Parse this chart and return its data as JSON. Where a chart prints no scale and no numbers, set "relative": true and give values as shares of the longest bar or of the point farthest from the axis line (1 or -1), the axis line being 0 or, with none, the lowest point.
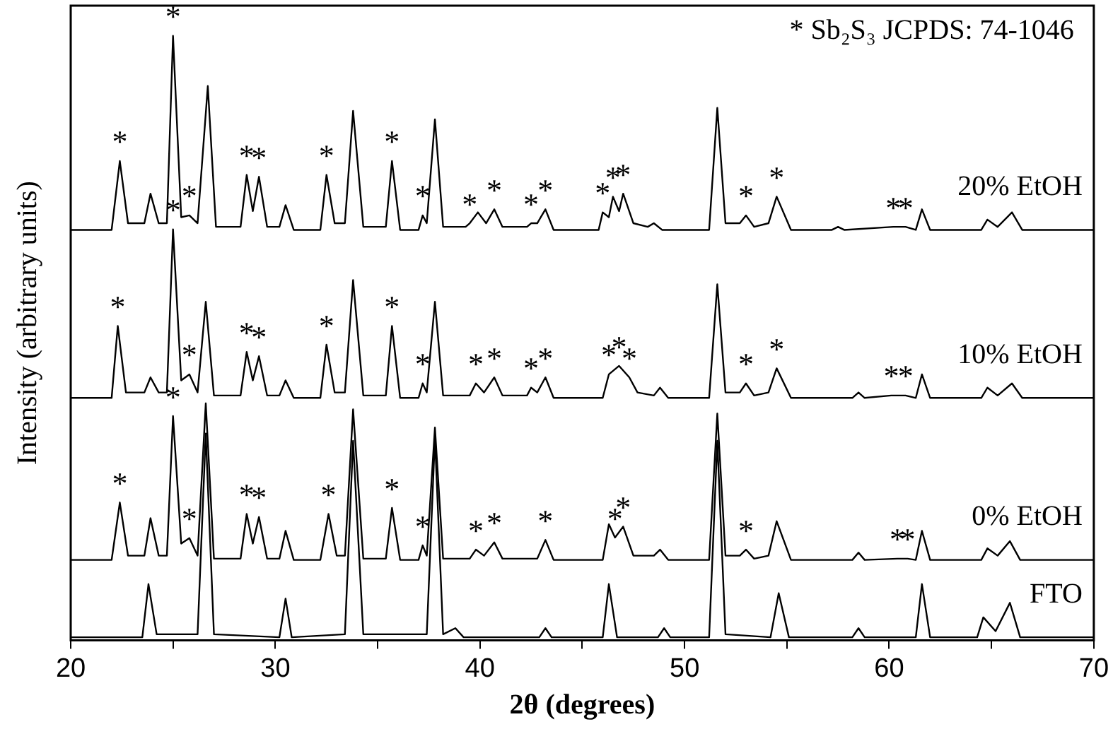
{
  "chart_data": {
    "type": "line",
    "relative": true,
    "xlabel": "2θ (degrees)",
    "ylabel": "Intensity (arbitrary units)",
    "xlim": [
      20,
      70
    ],
    "xticks": [
      20,
      {
        "value": 25,
        "label": null
      },
      30,
      {
        "value": 35,
        "label": null
      },
      40,
      {
        "value": 45,
        "label": null
      },
      50,
      {
        "value": 55,
        "label": null
      },
      60,
      {
        "value": 65,
        "label": null
      },
      70
    ],
    "legend": false,
    "series": [
      {
        "name": "20% EtOH",
        "color": "#000000",
        "x": [
          20,
          22.0,
          22.4,
          22.8,
          23.6,
          23.9,
          24.3,
          24.7,
          25.0,
          25.4,
          25.8,
          26.2,
          26.7,
          27.1,
          28.3,
          28.6,
          28.9,
          29.2,
          29.6,
          30.2,
          30.5,
          30.9,
          32.2,
          32.5,
          32.9,
          33.4,
          33.8,
          34.3,
          35.4,
          35.7,
          36.1,
          37.0,
          37.2,
          37.4,
          37.8,
          38.2,
          39.3,
          39.5,
          39.9,
          40.3,
          40.7,
          41.1,
          42.3,
          42.5,
          42.8,
          43.2,
          43.6,
          45.8,
          46.0,
          46.3,
          46.5,
          46.8,
          47.0,
          47.5,
          48.2,
          48.5,
          48.9,
          51.2,
          51.6,
          52.0,
          52.7,
          53.0,
          53.4,
          54.1,
          54.5,
          55.2,
          57.2,
          57.5,
          57.8,
          60.2,
          60.8,
          61.3,
          61.6,
          62.0,
          64.5,
          64.8,
          65.3,
          66.0,
          66.5,
          70
        ],
        "values": [
          0.679,
          0.679,
          0.793,
          0.69,
          0.69,
          0.739,
          0.69,
          0.69,
          1.0,
          0.7,
          0.703,
          0.69,
          0.917,
          0.684,
          0.684,
          0.77,
          0.71,
          0.767,
          0.684,
          0.684,
          0.72,
          0.679,
          0.679,
          0.77,
          0.69,
          0.69,
          0.876,
          0.684,
          0.684,
          0.793,
          0.679,
          0.679,
          0.703,
          0.69,
          0.862,
          0.684,
          0.684,
          0.69,
          0.708,
          0.69,
          0.713,
          0.684,
          0.684,
          0.69,
          0.69,
          0.713,
          0.679,
          0.679,
          0.708,
          0.7,
          0.734,
          0.71,
          0.739,
          0.69,
          0.684,
          0.69,
          0.679,
          0.679,
          0.881,
          0.69,
          0.69,
          0.703,
          0.684,
          0.69,
          0.734,
          0.679,
          0.679,
          0.684,
          0.679,
          0.684,
          0.684,
          0.679,
          0.713,
          0.679,
          0.679,
          0.696,
          0.684,
          0.708,
          0.679,
          0.679
        ]
      },
      {
        "name": "10% EtOH",
        "color": "#000000",
        "x": [
          20,
          22.0,
          22.3,
          22.7,
          23.6,
          23.9,
          24.3,
          24.7,
          25.0,
          25.4,
          25.8,
          26.2,
          26.6,
          27.0,
          28.3,
          28.6,
          28.9,
          29.2,
          29.6,
          30.2,
          30.5,
          30.9,
          32.2,
          32.5,
          32.9,
          33.4,
          33.8,
          34.3,
          35.4,
          35.7,
          36.1,
          37.0,
          37.2,
          37.4,
          37.8,
          38.2,
          39.5,
          39.8,
          40.2,
          40.7,
          41.1,
          42.3,
          42.5,
          42.8,
          43.2,
          43.6,
          46.0,
          46.3,
          46.8,
          47.3,
          47.7,
          48.5,
          48.8,
          49.2,
          51.2,
          51.6,
          52.0,
          52.7,
          53.0,
          53.4,
          54.1,
          54.5,
          55.2,
          58.2,
          58.5,
          58.8,
          60.1,
          60.8,
          61.3,
          61.6,
          62.0,
          64.5,
          64.8,
          65.3,
          66.0,
          66.5,
          70
        ],
        "values": [
          0.401,
          0.401,
          0.52,
          0.41,
          0.41,
          0.435,
          0.41,
          0.41,
          0.68,
          0.43,
          0.44,
          0.41,
          0.56,
          0.405,
          0.405,
          0.477,
          0.43,
          0.47,
          0.405,
          0.405,
          0.43,
          0.401,
          0.401,
          0.489,
          0.41,
          0.41,
          0.596,
          0.405,
          0.405,
          0.52,
          0.401,
          0.401,
          0.425,
          0.41,
          0.56,
          0.405,
          0.405,
          0.425,
          0.41,
          0.435,
          0.405,
          0.405,
          0.418,
          0.41,
          0.435,
          0.401,
          0.401,
          0.44,
          0.454,
          0.435,
          0.41,
          0.405,
          0.418,
          0.401,
          0.401,
          0.589,
          0.41,
          0.41,
          0.425,
          0.405,
          0.41,
          0.45,
          0.401,
          0.401,
          0.41,
          0.401,
          0.405,
          0.405,
          0.401,
          0.44,
          0.401,
          0.401,
          0.418,
          0.405,
          0.425,
          0.401,
          0.401
        ]
      },
      {
        "name": "0% EtOH",
        "color": "#000000",
        "x": [
          20,
          22.0,
          22.4,
          22.8,
          23.6,
          23.9,
          24.3,
          24.7,
          25.0,
          25.4,
          25.8,
          26.2,
          26.6,
          27.0,
          28.3,
          28.6,
          28.9,
          29.2,
          29.6,
          30.2,
          30.5,
          30.9,
          32.2,
          32.6,
          33.0,
          33.4,
          33.8,
          34.3,
          35.4,
          35.7,
          36.1,
          37.0,
          37.2,
          37.4,
          37.8,
          38.2,
          39.5,
          39.8,
          40.2,
          40.7,
          41.1,
          42.8,
          43.2,
          43.6,
          46.0,
          46.3,
          46.6,
          47.0,
          47.5,
          48.5,
          48.8,
          49.2,
          51.2,
          51.6,
          52.0,
          52.7,
          53.0,
          53.4,
          54.1,
          54.5,
          55.2,
          58.2,
          58.5,
          58.8,
          60.4,
          60.9,
          61.3,
          61.6,
          62.0,
          64.5,
          64.8,
          65.3,
          65.9,
          66.4,
          70
        ],
        "values": [
          0.133,
          0.133,
          0.228,
          0.14,
          0.14,
          0.202,
          0.14,
          0.14,
          0.371,
          0.16,
          0.169,
          0.14,
          0.392,
          0.135,
          0.135,
          0.209,
          0.16,
          0.204,
          0.135,
          0.135,
          0.181,
          0.133,
          0.133,
          0.209,
          0.14,
          0.14,
          0.382,
          0.135,
          0.135,
          0.219,
          0.133,
          0.133,
          0.157,
          0.14,
          0.352,
          0.135,
          0.135,
          0.15,
          0.14,
          0.162,
          0.135,
          0.135,
          0.166,
          0.133,
          0.133,
          0.192,
          0.17,
          0.188,
          0.14,
          0.14,
          0.15,
          0.133,
          0.133,
          0.375,
          0.14,
          0.14,
          0.15,
          0.135,
          0.14,
          0.197,
          0.133,
          0.133,
          0.145,
          0.133,
          0.135,
          0.135,
          0.133,
          0.181,
          0.133,
          0.133,
          0.152,
          0.14,
          0.164,
          0.133,
          0.133
        ]
      },
      {
        "name": "FTO",
        "color": "#000000",
        "x": [
          20,
          23.5,
          23.8,
          24.2,
          26.2,
          26.6,
          27.0,
          30.2,
          30.5,
          30.8,
          33.4,
          33.8,
          34.3,
          37.4,
          37.8,
          38.2,
          38.8,
          39.2,
          42.9,
          43.2,
          43.5,
          46,
          46.3,
          46.7,
          48.7,
          49,
          49.3,
          51.2,
          51.6,
          52.0,
          54.2,
          54.6,
          55.1,
          58.2,
          58.5,
          58.8,
          61.3,
          61.6,
          62.0,
          64.3,
          64.6,
          65.2,
          65.9,
          66.4,
          70
        ],
        "values": [
          0.005,
          0.005,
          0.093,
          0.01,
          0.01,
          0.342,
          0.01,
          0.005,
          0.069,
          0.005,
          0.01,
          0.33,
          0.01,
          0.01,
          0.335,
          0.01,
          0.02,
          0.005,
          0.005,
          0.02,
          0.005,
          0.005,
          0.093,
          0.005,
          0.005,
          0.02,
          0.005,
          0.005,
          0.33,
          0.01,
          0.005,
          0.078,
          0.005,
          0.005,
          0.02,
          0.005,
          0.005,
          0.093,
          0.005,
          0.005,
          0.038,
          0.015,
          0.062,
          0.005,
          0.005
        ]
      }
    ],
    "annotations": [
      "* Sb₂S₃ JCPDS: 74-1046",
      {
        "text": "*",
        "x": 22.4,
        "y": 0.793
      },
      {
        "text": "*",
        "x": 25.0,
        "y": 1.0
      },
      {
        "text": "*",
        "x": 25.8,
        "y": 0.703
      },
      {
        "text": "*",
        "x": 28.6,
        "y": 0.77
      },
      {
        "text": "*",
        "x": 29.2,
        "y": 0.767
      },
      {
        "text": "*",
        "x": 32.5,
        "y": 0.77
      },
      {
        "text": "*",
        "x": 35.7,
        "y": 0.793
      },
      {
        "text": "*",
        "x": 37.2,
        "y": 0.703
      },
      {
        "text": "*",
        "x": 39.5,
        "y": 0.69
      },
      {
        "text": "*",
        "x": 40.7,
        "y": 0.713
      },
      {
        "text": "*",
        "x": 42.5,
        "y": 0.69
      },
      {
        "text": "*",
        "x": 43.2,
        "y": 0.713
      },
      {
        "text": "*",
        "x": 46.0,
        "y": 0.708
      },
      {
        "text": "*",
        "x": 46.5,
        "y": 0.734
      },
      {
        "text": "*",
        "x": 47.0,
        "y": 0.739
      },
      {
        "text": "*",
        "x": 53.0,
        "y": 0.703
      },
      {
        "text": "*",
        "x": 54.5,
        "y": 0.734
      },
      {
        "text": "*",
        "x": 60.2,
        "y": 0.684
      },
      {
        "text": "*",
        "x": 60.8,
        "y": 0.684
      },
      {
        "text": "*",
        "x": 22.3,
        "y": 0.52
      },
      {
        "text": "*",
        "x": 25.0,
        "y": 0.68
      },
      {
        "text": "*",
        "x": 25.8,
        "y": 0.44
      },
      {
        "text": "*",
        "x": 28.6,
        "y": 0.477
      },
      {
        "text": "*",
        "x": 29.2,
        "y": 0.47
      },
      {
        "text": "*",
        "x": 32.5,
        "y": 0.489
      },
      {
        "text": "*",
        "x": 35.7,
        "y": 0.52
      },
      {
        "text": "*",
        "x": 37.2,
        "y": 0.425
      },
      {
        "text": "*",
        "x": 39.8,
        "y": 0.425
      },
      {
        "text": "*",
        "x": 40.7,
        "y": 0.435
      },
      {
        "text": "*",
        "x": 42.5,
        "y": 0.418
      },
      {
        "text": "*",
        "x": 43.2,
        "y": 0.435
      },
      {
        "text": "*",
        "x": 46.3,
        "y": 0.44
      },
      {
        "text": "*",
        "x": 46.8,
        "y": 0.454
      },
      {
        "text": "*",
        "x": 47.3,
        "y": 0.435
      },
      {
        "text": "*",
        "x": 53.0,
        "y": 0.425
      },
      {
        "text": "*",
        "x": 54.5,
        "y": 0.45
      },
      {
        "text": "*",
        "x": 60.1,
        "y": 0.405
      },
      {
        "text": "*",
        "x": 60.8,
        "y": 0.405
      },
      {
        "text": "*",
        "x": 22.4,
        "y": 0.228
      },
      {
        "text": "*",
        "x": 25.0,
        "y": 0.371
      },
      {
        "text": "*",
        "x": 25.8,
        "y": 0.169
      },
      {
        "text": "*",
        "x": 28.6,
        "y": 0.209
      },
      {
        "text": "*",
        "x": 29.2,
        "y": 0.204
      },
      {
        "text": "*",
        "x": 32.6,
        "y": 0.209
      },
      {
        "text": "*",
        "x": 35.7,
        "y": 0.219
      },
      {
        "text": "*",
        "x": 37.2,
        "y": 0.157
      },
      {
        "text": "*",
        "x": 39.8,
        "y": 0.15
      },
      {
        "text": "*",
        "x": 40.7,
        "y": 0.162
      },
      {
        "text": "*",
        "x": 43.2,
        "y": 0.166
      },
      {
        "text": "*",
        "x": 46.6,
        "y": 0.17
      },
      {
        "text": "*",
        "x": 47.0,
        "y": 0.188
      },
      {
        "text": "*",
        "x": 53.0,
        "y": 0.15
      },
      {
        "text": "*",
        "x": 60.4,
        "y": 0.135
      },
      {
        "text": "*",
        "x": 60.9,
        "y": 0.135
      }
    ]
  }
}
